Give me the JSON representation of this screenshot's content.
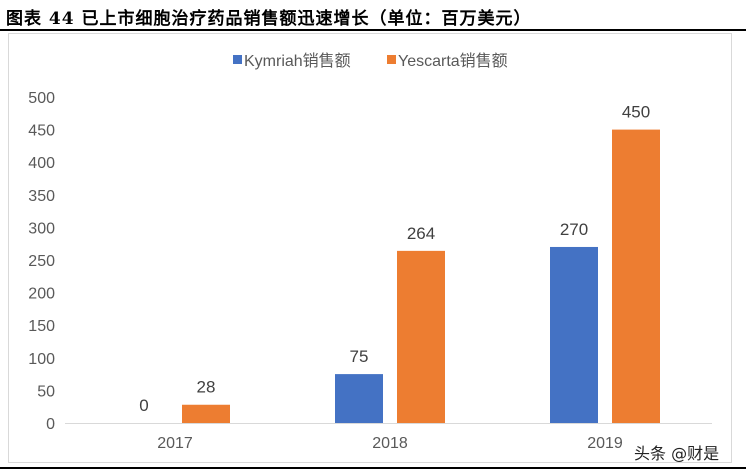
{
  "figure_title": "图表 44 已上市细胞治疗药品销售额迅速增长（单位：百万美元）",
  "watermark": "头条 @财是",
  "chart_data": {
    "type": "bar",
    "title": "",
    "categories": [
      "2017",
      "2018",
      "2019"
    ],
    "series": [
      {
        "name": "Kymriah销售额",
        "color": "#4472C4",
        "values": [
          0,
          75,
          270
        ]
      },
      {
        "name": "Yescarta销售额",
        "color": "#ED7D31",
        "values": [
          28,
          264,
          450
        ]
      }
    ],
    "yticks": [
      "0",
      "50",
      "100",
      "150",
      "200",
      "250",
      "300",
      "350",
      "400",
      "450",
      "500"
    ],
    "ylim": [
      0,
      500
    ],
    "grid": false,
    "legend": "top",
    "data_labels": true
  }
}
